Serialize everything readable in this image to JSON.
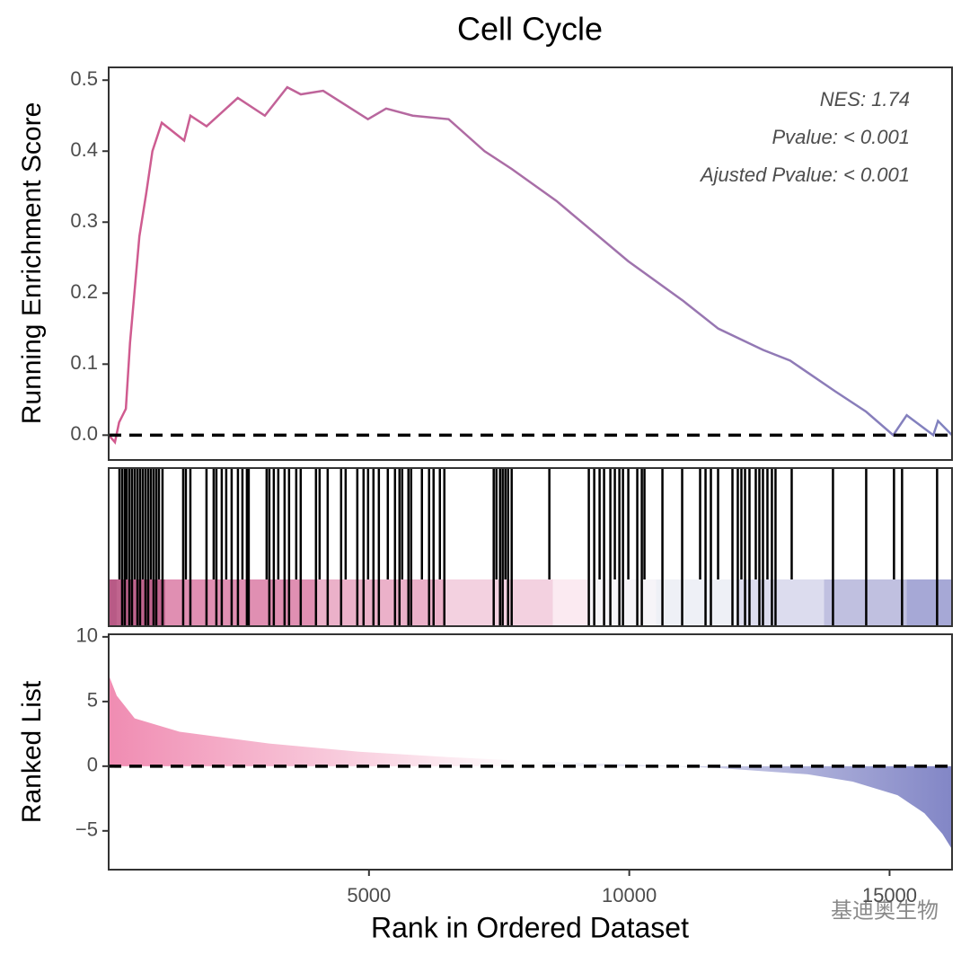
{
  "chart_data": [
    {
      "type": "line",
      "title": "Cell Cycle",
      "ylabel": "Running Enrichment Score",
      "x": [
        0,
        120,
        200,
        330,
        410,
        590,
        720,
        840,
        1020,
        1450,
        1570,
        1880,
        2480,
        3000,
        3430,
        3690,
        4120,
        4980,
        5330,
        5840,
        6530,
        7220,
        7740,
        8600,
        9980,
        11020,
        11710,
        12570,
        13090,
        13950,
        14550,
        15070,
        15330,
        15840,
        15930,
        16200
      ],
      "y": [
        0,
        -0.01,
        0.018,
        0.037,
        0.13,
        0.28,
        0.34,
        0.4,
        0.44,
        0.415,
        0.45,
        0.435,
        0.475,
        0.45,
        0.49,
        0.48,
        0.485,
        0.445,
        0.46,
        0.45,
        0.445,
        0.4,
        0.375,
        0.33,
        0.245,
        0.19,
        0.15,
        0.12,
        0.105,
        0.062,
        0.033,
        0.0,
        0.028,
        0.0,
        0.02,
        0
      ],
      "colors": [
        "#d25a8e",
        "#7f82c0"
      ],
      "xlim": [
        0,
        16200
      ],
      "ylim": [
        -0.035,
        0.518
      ],
      "yticks": [
        {
          "value": 0,
          "label": "0.0"
        },
        0.1,
        0.2,
        0.3,
        0.4,
        0.5
      ],
      "hline": 0,
      "annotations": [
        "NES: 1.74",
        "Pvalue: < 0.001",
        "Ajusted Pvalue: < 0.001"
      ]
    },
    {
      "type": "rug",
      "hits": [
        207,
        259,
        310,
        345,
        397,
        448,
        500,
        552,
        603,
        655,
        707,
        759,
        810,
        862,
        914,
        965,
        1034,
        1431,
        1483,
        1569,
        1879,
        2017,
        2069,
        2172,
        2258,
        2362,
        2483,
        2569,
        2655,
        2690,
        3034,
        3086,
        3172,
        3258,
        3379,
        3465,
        3603,
        3689,
        3982,
        4052,
        4207,
        4465,
        4552,
        4776,
        4896,
        4983,
        5086,
        5190,
        5362,
        5500,
        5586,
        5638,
        5758,
        5810,
        6017,
        6155,
        6241,
        6362,
        6448,
        7396,
        7448,
        7517,
        7568,
        7620,
        7672,
        7741,
        8465,
        9223,
        9327,
        9430,
        9516,
        9637,
        9723,
        9810,
        9879,
        9982,
        10154,
        10241,
        10292,
        10637,
        11016,
        11361,
        11465,
        11568,
        11706,
        11982,
        12085,
        12154,
        12224,
        12309,
        12430,
        12499,
        12568,
        12654,
        12740,
        12809,
        13120,
        13913,
        14551,
        15085,
        15240,
        15913
      ],
      "band_edges": [
        0,
        155,
        1086,
        3965,
        6465,
        8534,
        9223,
        10516,
        12068,
        13740,
        15327,
        16200
      ],
      "band_colors": [
        "#b85a86",
        "#c0648e",
        "#e08fb2",
        "#ebb1c9",
        "#f3d1e0",
        "#fbeaf1",
        "#f6f4f8",
        "#eef0f6",
        "#dcdcee",
        "#c0c0e0",
        "#a6a8d6"
      ],
      "xlim": [
        0,
        16200
      ]
    },
    {
      "type": "area",
      "ylabel": "Ranked List",
      "xlabel": "Rank in Ordered Dataset",
      "x": [
        0,
        155,
        500,
        1362,
        3086,
        4810,
        6534,
        8258,
        9982,
        11706,
        13430,
        14292,
        15154,
        15671,
        16016,
        16200
      ],
      "values": [
        7.06,
        5.45,
        3.7,
        2.66,
        1.75,
        1.12,
        0.7,
        0.35,
        0.14,
        -0.14,
        -0.63,
        -1.19,
        -2.24,
        -3.64,
        -5.24,
        -6.43
      ],
      "colors": [
        "#f08cb2",
        "#ffffff",
        "#8286c6"
      ],
      "xlim": [
        0,
        16200
      ],
      "ylim": [
        -8.0,
        10.2
      ],
      "xticks": [
        5000,
        10000,
        15000
      ],
      "yticks": [
        10,
        5,
        0,
        {
          "value": -5,
          "label": "−5"
        }
      ],
      "hline": 0,
      "watermark": "基迪奥生物"
    }
  ]
}
